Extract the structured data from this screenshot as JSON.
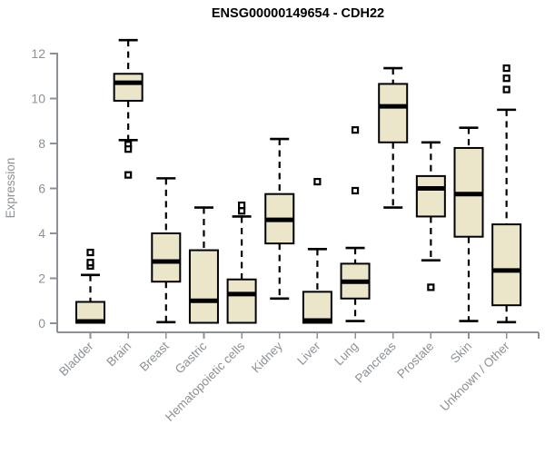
{
  "header": {
    "title": "ENSG00000149654 - CDH22"
  },
  "colors": {
    "box_fill": "#ebe6ca",
    "box_stroke": "#000000",
    "median_stroke": "#000000",
    "outlier_stroke": "#000000",
    "axis_line": "#8b9196",
    "axis_text": "#8b9196",
    "title_text": "#000000",
    "background": "#ffffff"
  },
  "chart_data": {
    "type": "boxplot",
    "title": "ENSG00000149654 - CDH22",
    "xlabel": "",
    "ylabel": "Expression",
    "ylim": [
      0,
      12.8
    ],
    "y_ticks": [
      0,
      2,
      4,
      6,
      8,
      10,
      12
    ],
    "grid": false,
    "legend": "none",
    "categories": [
      "Bladder",
      "Brain",
      "Breast",
      "Gastric",
      "Hematopoietic cells",
      "Kidney",
      "Liver",
      "Lung",
      "Pancreas",
      "Prostate",
      "Skin",
      "Unknown / Other"
    ],
    "boxes": [
      {
        "category": "Bladder",
        "whisker_low": 0.02,
        "q1": 0.02,
        "median": 0.08,
        "q3": 0.95,
        "whisker_high": 2.15,
        "outliers": [
          2.55,
          2.7,
          3.15
        ]
      },
      {
        "category": "Brain",
        "whisker_low": 8.15,
        "q1": 9.9,
        "median": 10.7,
        "q3": 11.1,
        "whisker_high": 12.6,
        "outliers": [
          7.95,
          7.75,
          6.6
        ]
      },
      {
        "category": "Breast",
        "whisker_low": 0.05,
        "q1": 1.85,
        "median": 2.75,
        "q3": 4.0,
        "whisker_high": 6.45,
        "outliers": []
      },
      {
        "category": "Gastric",
        "whisker_low": 0.02,
        "q1": 0.02,
        "median": 1.0,
        "q3": 3.25,
        "whisker_high": 5.15,
        "outliers": []
      },
      {
        "category": "Hematopoietic cells",
        "whisker_low": 0.02,
        "q1": 0.02,
        "median": 1.3,
        "q3": 1.95,
        "whisker_high": 4.75,
        "outliers": [
          5.0,
          5.25
        ]
      },
      {
        "category": "Kidney",
        "whisker_low": 1.1,
        "q1": 3.55,
        "median": 4.6,
        "q3": 5.75,
        "whisker_high": 8.2,
        "outliers": []
      },
      {
        "category": "Liver",
        "whisker_low": 0.02,
        "q1": 0.02,
        "median": 0.12,
        "q3": 1.4,
        "whisker_high": 3.3,
        "outliers": [
          6.3
        ]
      },
      {
        "category": "Lung",
        "whisker_low": 0.1,
        "q1": 1.1,
        "median": 1.85,
        "q3": 2.65,
        "whisker_high": 3.35,
        "outliers": [
          5.9,
          8.6
        ]
      },
      {
        "category": "Pancreas",
        "whisker_low": 5.15,
        "q1": 8.05,
        "median": 9.65,
        "q3": 10.65,
        "whisker_high": 11.35,
        "outliers": []
      },
      {
        "category": "Prostate",
        "whisker_low": 2.8,
        "q1": 4.75,
        "median": 6.0,
        "q3": 6.55,
        "whisker_high": 8.05,
        "outliers": [
          1.6
        ]
      },
      {
        "category": "Skin",
        "whisker_low": 0.1,
        "q1": 3.85,
        "median": 5.75,
        "q3": 7.8,
        "whisker_high": 8.7,
        "outliers": []
      },
      {
        "category": "Unknown / Other",
        "whisker_low": 0.05,
        "q1": 0.8,
        "median": 2.35,
        "q3": 4.4,
        "whisker_high": 9.5,
        "outliers": [
          10.4,
          10.9,
          11.35
        ]
      }
    ]
  }
}
